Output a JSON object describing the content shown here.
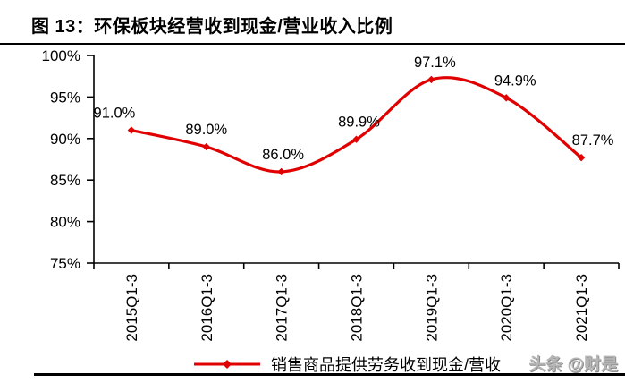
{
  "header": {
    "title": "图 13：环保板块经营收到现金/营业收入比例"
  },
  "chart_data": {
    "type": "line",
    "title": "环保板块经营收到现金/营业收入比例",
    "categories": [
      "2015Q1-3",
      "2016Q1-3",
      "2017Q1-3",
      "2018Q1-3",
      "2019Q1-3",
      "2020Q1-3",
      "2021Q1-3"
    ],
    "series": [
      {
        "name": "销售商品提供劳务收到现金/营收",
        "values": [
          91.0,
          89.0,
          86.0,
          89.9,
          97.1,
          94.9,
          87.7
        ],
        "color": "#e00000"
      }
    ],
    "data_labels": [
      "91.0%",
      "89.0%",
      "86.0%",
      "89.9%",
      "97.1%",
      "94.9%",
      "87.7%"
    ],
    "ylim": [
      75,
      100
    ],
    "ytick_step": 5,
    "ytick_suffix": "%",
    "xlabel": "",
    "ylabel": "",
    "grid": false,
    "smooth": true,
    "marker": "diamond",
    "legend_position": "bottom",
    "label_dx": [
      -19,
      0,
      2,
      3,
      4,
      10,
      13
    ]
  },
  "legend": {
    "label": "销售商品提供劳务收到现金/营收"
  },
  "watermark": {
    "text": "头条 @财是"
  },
  "colors": {
    "line": "#e00000",
    "axis": "#000000",
    "text": "#000000",
    "divider": "#000000",
    "watermark": "#b5b5b5"
  }
}
